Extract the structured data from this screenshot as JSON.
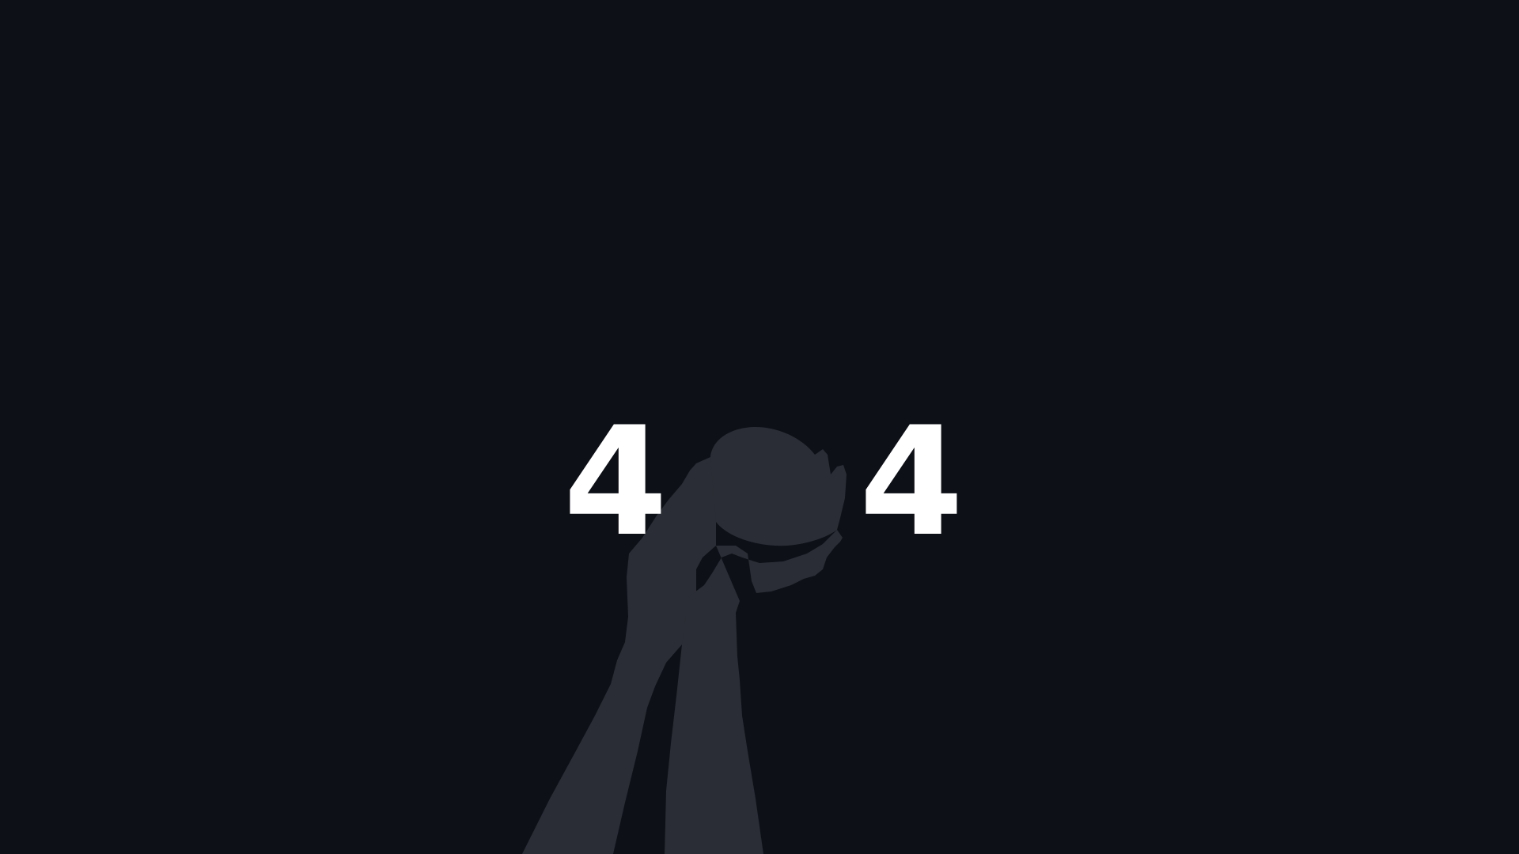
{
  "error": {
    "digit_left": "4",
    "digit_right": "4",
    "illustration_icon": "hands-holding-ball-icon"
  },
  "colors": {
    "background": "#0d1017",
    "digit": "#ffffff",
    "silhouette": "#2a2d35"
  }
}
